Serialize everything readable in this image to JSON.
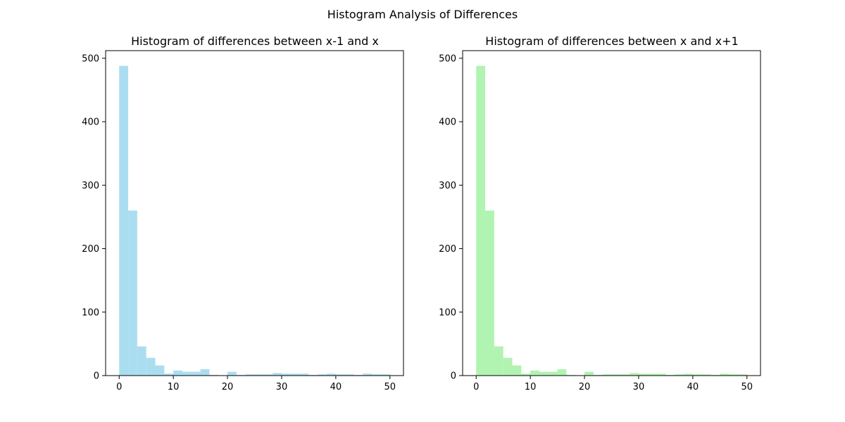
{
  "figure": {
    "suptitle": "Histogram Analysis of Differences"
  },
  "chart_data": [
    {
      "type": "bar",
      "title": "Histogram of differences between x-1 and x",
      "xlabel": "",
      "ylabel": "",
      "xlim": [
        -2.5,
        52.5
      ],
      "ylim": [
        0,
        512
      ],
      "xticks": [
        0,
        10,
        20,
        30,
        40,
        50
      ],
      "yticks": [
        0,
        100,
        200,
        300,
        400,
        500
      ],
      "bin_start": 0,
      "bin_width": 1.6667,
      "color": "#87ceeb",
      "opacity": 0.7,
      "grid": false,
      "counts": [
        488,
        260,
        46,
        28,
        16,
        3,
        8,
        6,
        6,
        10,
        1,
        0,
        6,
        1,
        2,
        2,
        2,
        4,
        3,
        3,
        3,
        1,
        2,
        3,
        2,
        2,
        1,
        3,
        2,
        2
      ]
    },
    {
      "type": "bar",
      "title": "Histogram of differences between x and x+1",
      "xlabel": "",
      "ylabel": "",
      "xlim": [
        -2.5,
        52.5
      ],
      "ylim": [
        0,
        512
      ],
      "xticks": [
        0,
        10,
        20,
        30,
        40,
        50
      ],
      "yticks": [
        0,
        100,
        200,
        300,
        400,
        500
      ],
      "bin_start": 0,
      "bin_width": 1.6667,
      "color": "#90ee90",
      "opacity": 0.7,
      "grid": false,
      "counts": [
        488,
        260,
        46,
        28,
        16,
        3,
        8,
        6,
        6,
        10,
        1,
        0,
        6,
        1,
        2,
        2,
        2,
        4,
        3,
        3,
        3,
        1,
        2,
        3,
        2,
        2,
        1,
        3,
        2,
        2
      ]
    }
  ]
}
